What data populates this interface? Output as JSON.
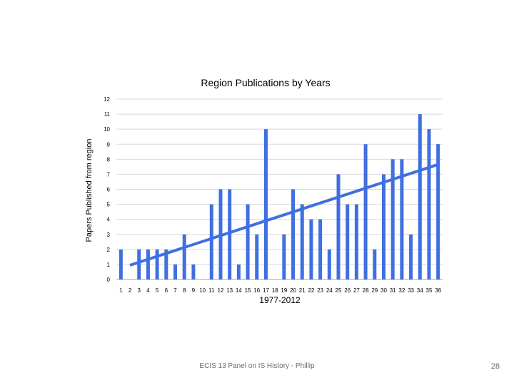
{
  "chart_data": {
    "type": "bar",
    "title": "Region Publications by Years",
    "xlabel": "1977-2012",
    "ylabel": "Papers Published from region",
    "categories": [
      "1",
      "2",
      "3",
      "4",
      "5",
      "6",
      "7",
      "8",
      "9",
      "10",
      "11",
      "12",
      "13",
      "14",
      "15",
      "16",
      "17",
      "18",
      "19",
      "20",
      "21",
      "22",
      "23",
      "24",
      "25",
      "26",
      "27",
      "28",
      "29",
      "30",
      "31",
      "32",
      "33",
      "34",
      "35",
      "36"
    ],
    "values": [
      2,
      0,
      2,
      2,
      2,
      2,
      1,
      3,
      1,
      0,
      5,
      6,
      6,
      1,
      5,
      3,
      10,
      0,
      3,
      6,
      5,
      4,
      4,
      2,
      7,
      5,
      5,
      9,
      2,
      7,
      8,
      8,
      3,
      11,
      10,
      9
    ],
    "yticks": [
      0,
      1,
      2,
      3,
      4,
      5,
      6,
      7,
      8,
      9,
      10,
      11,
      12
    ],
    "ylim": [
      0,
      12
    ],
    "grid": true,
    "legend": "none",
    "trendline": {
      "type": "linear",
      "from": [
        2,
        0.95
      ],
      "to": [
        36,
        7.65
      ]
    },
    "colors": {
      "bar": "#3f6fe0",
      "trend": "#3f6fe0",
      "grid": "#d9d9d9"
    }
  },
  "footer": {
    "text": "ECIS 13 Panel on IS History - Phillip",
    "page_number": "28"
  }
}
